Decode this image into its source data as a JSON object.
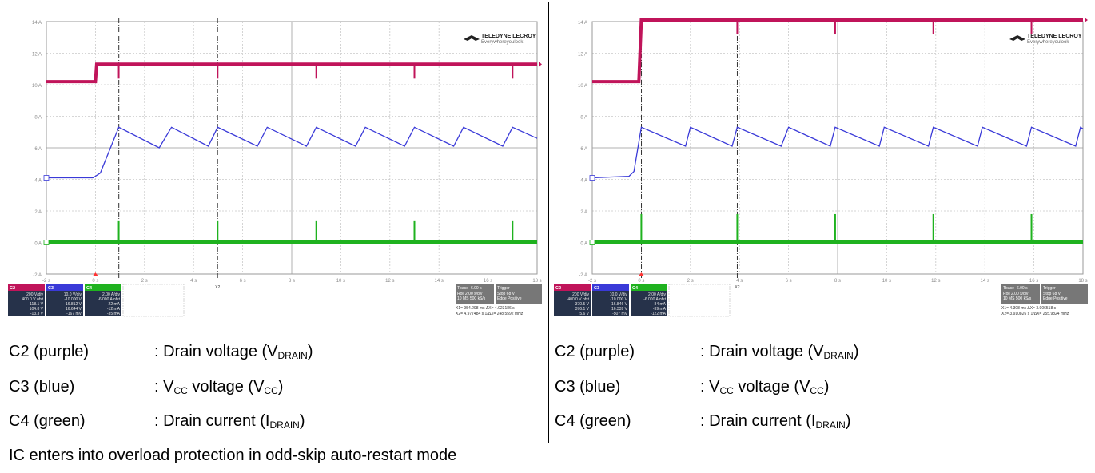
{
  "brand": {
    "line1": "TELEDYNE LECROY",
    "line2": "Everywhereyoulook"
  },
  "time_axis": {
    "ticks": [
      "-2 s",
      "0 s",
      "2 s",
      "4 s",
      "6 s",
      "8 s",
      "10 s",
      "12 s",
      "14 s",
      "16 s",
      "18 s"
    ]
  },
  "y_axis": {
    "ticks": [
      "14 A",
      "12 A",
      "10 A",
      "8 A",
      "6 A",
      "4 A",
      "2 A",
      "0 A",
      "-2 A"
    ]
  },
  "panels": [
    {
      "id": "left",
      "cursor_labels": [
        "X1",
        "X2"
      ],
      "ch2": {
        "name": "C2",
        "lines": [
          "200 V/div",
          "400.0 V ofst",
          "118.1 V",
          "104.8 V",
          "-13.3 V"
        ]
      },
      "ch3": {
        "name": "C3",
        "lines": [
          "10.0 V/div",
          "-10.000 V",
          "16.812 V",
          "16.644 V",
          "-167 mV"
        ]
      },
      "ch4": {
        "name": "C4",
        "lines": [
          "2.00 A/div",
          "-6.000 A ofst",
          "22 mA",
          "-12 mA",
          "-35 mA"
        ]
      },
      "tbase": {
        "header": "Tbase  -6.00 s",
        "lines": [
          "Roll    2.00 s/div",
          "10 MS  500 kS/s"
        ]
      },
      "trigger": {
        "header": "Trigger",
        "lines": [
          "Stop       68 V",
          "Edge   Positive"
        ]
      },
      "cursors": {
        "x1": "X1= 954.298 ms   ΔX=   4.023186 s",
        "x2": "X2= 4.977484 s  1/ΔX= 248.5592 mHz"
      }
    },
    {
      "id": "right",
      "cursor_labels": [
        "X1",
        "X2"
      ],
      "ch2": {
        "name": "C2",
        "lines": [
          "200 V/div",
          "400.0 V ofst",
          "370.5 V",
          "376.1 V",
          "5.6 V"
        ]
      },
      "ch3": {
        "name": "C3",
        "lines": [
          "10.0 V/div",
          "-10.000 V",
          "16.846 V",
          "16.339 V",
          "-507 mV"
        ]
      },
      "ch4": {
        "name": "C4",
        "lines": [
          "2.00 A/div",
          "-6.000 A ofst",
          "84 mA",
          "-39 mA",
          "-122 mA"
        ]
      },
      "tbase": {
        "header": "Tbase  -6.00 s",
        "lines": [
          "Roll    2.00 s/div",
          "10 MS  500 kS/s"
        ]
      },
      "trigger": {
        "header": "Trigger",
        "lines": [
          "Stop       68 V",
          "Edge   Positive"
        ]
      },
      "cursors": {
        "x1": "X1=   4.308 ms   ΔX=   3.906518 s",
        "x2": "X2= 3.910826 s  1/ΔX= 255.9824 mHz"
      }
    }
  ],
  "legend": [
    {
      "name": "C2 (purple)",
      "desc_pre": ": Drain voltage (V",
      "desc_sub": "DRAIN",
      "desc_post": ")"
    },
    {
      "name": "C3 (blue)",
      "desc_pre": ": V",
      "desc_sub": "CC",
      "desc_mid": " voltage (V",
      "desc_sub2": "CC",
      "desc_post": ")"
    },
    {
      "name": "C4 (green)",
      "desc_pre": ": Drain current (I",
      "desc_sub": "DRAIN",
      "desc_post": ")"
    }
  ],
  "caption": "IC enters into overload protection in odd-skip auto-restart mode",
  "colors": {
    "c2": "#c0145a",
    "c3": "#3a3ad8",
    "c4": "#1fb21f",
    "grid": "#c9c9c9",
    "text": "#8a8a8a"
  },
  "chart_data": [
    {
      "type": "line",
      "x_unit": "s",
      "xlim": [
        -2,
        18
      ],
      "ylim": [
        -2,
        14
      ],
      "grid": true,
      "series": [
        {
          "name": "C2",
          "points": [
            [
              -2,
              10.2
            ],
            [
              0,
              10.2
            ],
            [
              0.05,
              11.3
            ],
            [
              18,
              11.3
            ]
          ],
          "dips_at": [
            0.95,
            4.98,
            9.0,
            13.0,
            17.0
          ]
        },
        {
          "name": "C3",
          "points": [
            [
              -2,
              4.1
            ],
            [
              -0.1,
              4.1
            ],
            [
              0.2,
              4.4
            ],
            [
              0.95,
              7.3
            ],
            [
              2.6,
              6.0
            ],
            [
              3.1,
              7.3
            ],
            [
              4.6,
              6.1
            ],
            [
              4.98,
              7.3
            ],
            [
              6.6,
              6.1
            ],
            [
              7.0,
              7.3
            ],
            [
              8.6,
              6.1
            ],
            [
              9.0,
              7.3
            ],
            [
              10.6,
              6.1
            ],
            [
              11.0,
              7.3
            ],
            [
              12.6,
              6.1
            ],
            [
              13.0,
              7.3
            ],
            [
              14.6,
              6.1
            ],
            [
              15.0,
              7.3
            ],
            [
              16.6,
              6.1
            ],
            [
              17.0,
              7.3
            ],
            [
              18,
              6.6
            ]
          ]
        },
        {
          "name": "C4",
          "points": [
            [
              -2,
              0
            ],
            [
              18,
              0
            ]
          ],
          "spikes": [
            [
              0.95,
              1.4
            ],
            [
              4.98,
              1.4
            ],
            [
              9.0,
              1.4
            ],
            [
              13.0,
              1.4
            ],
            [
              17.0,
              1.4
            ]
          ]
        }
      ],
      "cursors_x": [
        0.954,
        4.977
      ]
    },
    {
      "type": "line",
      "x_unit": "s",
      "xlim": [
        -2,
        18
      ],
      "ylim": [
        -2,
        14
      ],
      "grid": true,
      "series": [
        {
          "name": "C2",
          "points": [
            [
              -2,
              10.2
            ],
            [
              -0.1,
              10.2
            ],
            [
              0.0,
              14.1
            ],
            [
              18,
              14.1
            ]
          ],
          "dips_at": [
            0.0,
            3.91,
            7.9,
            11.9,
            15.9
          ]
        },
        {
          "name": "C3",
          "points": [
            [
              -2,
              4.1
            ],
            [
              -0.5,
              4.2
            ],
            [
              -0.3,
              4.5
            ],
            [
              0.0,
              7.3
            ],
            [
              1.8,
              6.1
            ],
            [
              2.0,
              7.3
            ],
            [
              3.7,
              6.1
            ],
            [
              3.91,
              7.3
            ],
            [
              5.7,
              6.1
            ],
            [
              6.0,
              7.3
            ],
            [
              7.7,
              6.1
            ],
            [
              7.9,
              7.3
            ],
            [
              9.7,
              6.1
            ],
            [
              9.9,
              7.3
            ],
            [
              11.7,
              6.1
            ],
            [
              11.9,
              7.3
            ],
            [
              13.7,
              6.1
            ],
            [
              13.9,
              7.3
            ],
            [
              15.7,
              6.1
            ],
            [
              15.9,
              7.3
            ],
            [
              17.7,
              6.1
            ],
            [
              17.9,
              7.3
            ],
            [
              18,
              7.2
            ]
          ]
        },
        {
          "name": "C4",
          "points": [
            [
              -2,
              0
            ],
            [
              18,
              0
            ]
          ],
          "spikes": [
            [
              0.0,
              1.8
            ],
            [
              3.91,
              1.8
            ],
            [
              7.9,
              1.8
            ],
            [
              11.9,
              1.8
            ],
            [
              15.9,
              1.8
            ]
          ]
        }
      ],
      "cursors_x": [
        0.004,
        3.911
      ]
    }
  ]
}
